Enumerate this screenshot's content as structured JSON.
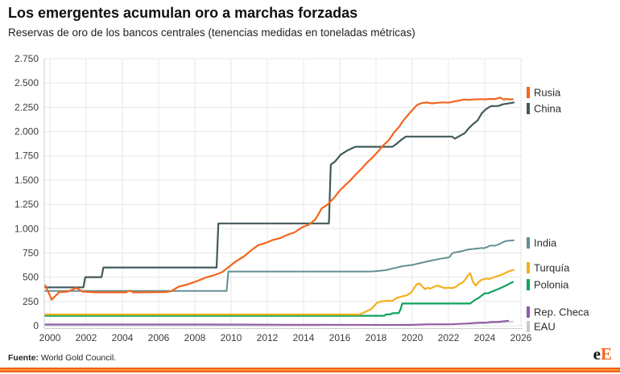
{
  "header": {
    "title": "Los emergentes acumulan oro a marchas forzadas",
    "subtitle": "Reservas de oro de los bancos centrales (tenencias medidas en toneladas métricas)"
  },
  "footer": {
    "source_label": "Fuente:",
    "source_text": "World Gold Council.",
    "logo_e": "e",
    "logo_E": "E"
  },
  "colors": {
    "grid": "#e7e7e7",
    "axis": "#cccccc",
    "tick_text": "#3c3c3c",
    "accent_orange": "#f4641d"
  },
  "chart_data": {
    "type": "line",
    "title": "Los emergentes acumulan oro a marchas forzadas",
    "subtitle": "Reservas de oro de los bancos centrales (tenencias medidas en toneladas métricas)",
    "xlabel": "",
    "ylabel": "",
    "xlim": [
      1999.7,
      2026.5
    ],
    "ylim": [
      0,
      2750
    ],
    "grid": true,
    "legend_position": "right",
    "x_ticks": [
      2000,
      2002,
      2004,
      2006,
      2008,
      2010,
      2012,
      2014,
      2016,
      2018,
      2020,
      2022,
      2024,
      2026
    ],
    "y_ticks": [
      {
        "value": 0,
        "label": "0"
      },
      {
        "value": 250,
        "label": "250"
      },
      {
        "value": 500,
        "label": "500"
      },
      {
        "value": 750,
        "label": "750"
      },
      {
        "value": 1000,
        "label": "1.000"
      },
      {
        "value": 1250,
        "label": "1.250"
      },
      {
        "value": 1500,
        "label": "1.500"
      },
      {
        "value": 1750,
        "label": "1.750"
      },
      {
        "value": 2000,
        "label": "2.000"
      },
      {
        "value": 2250,
        "label": "2.250"
      },
      {
        "value": 2500,
        "label": "2.500"
      },
      {
        "value": 2750,
        "label": "2.750"
      }
    ],
    "series": [
      {
        "name": "Rusia",
        "slug": "rusia",
        "color": "#f4641d",
        "width": 2.2,
        "legend_y": 55,
        "points": [
          [
            1999.75,
            415
          ],
          [
            2000.1,
            268
          ],
          [
            2000.5,
            345
          ],
          [
            2001,
            352
          ],
          [
            2001.45,
            390
          ],
          [
            2001.8,
            352
          ],
          [
            2002.5,
            344
          ],
          [
            2004.2,
            344
          ],
          [
            2004.4,
            363
          ],
          [
            2004.6,
            344
          ],
          [
            2006.4,
            346
          ],
          [
            2006.7,
            357
          ],
          [
            2007.1,
            402
          ],
          [
            2007.6,
            426
          ],
          [
            2008.1,
            458
          ],
          [
            2008.6,
            496
          ],
          [
            2009.1,
            523
          ],
          [
            2009.5,
            552
          ],
          [
            2009.9,
            610
          ],
          [
            2010.3,
            668
          ],
          [
            2010.7,
            712
          ],
          [
            2011.1,
            775
          ],
          [
            2011.5,
            830
          ],
          [
            2011.9,
            852
          ],
          [
            2012.3,
            883
          ],
          [
            2012.7,
            902
          ],
          [
            2013.1,
            936
          ],
          [
            2013.5,
            962
          ],
          [
            2013.9,
            1012
          ],
          [
            2014.3,
            1042
          ],
          [
            2014.65,
            1095
          ],
          [
            2015,
            1208
          ],
          [
            2015.35,
            1252
          ],
          [
            2015.7,
            1322
          ],
          [
            2016,
            1392
          ],
          [
            2016.3,
            1447
          ],
          [
            2016.6,
            1500
          ],
          [
            2016.9,
            1562
          ],
          [
            2017.2,
            1617
          ],
          [
            2017.5,
            1680
          ],
          [
            2017.8,
            1732
          ],
          [
            2018.1,
            1792
          ],
          [
            2018.4,
            1858
          ],
          [
            2018.7,
            1910
          ],
          [
            2019,
            1992
          ],
          [
            2019.25,
            2042
          ],
          [
            2019.5,
            2113
          ],
          [
            2019.75,
            2168
          ],
          [
            2020,
            2220
          ],
          [
            2020.25,
            2271
          ],
          [
            2020.5,
            2293
          ],
          [
            2020.8,
            2299
          ],
          [
            2021.1,
            2290
          ],
          [
            2021.4,
            2296
          ],
          [
            2021.7,
            2300
          ],
          [
            2022,
            2297
          ],
          [
            2022.3,
            2309
          ],
          [
            2022.6,
            2319
          ],
          [
            2022.85,
            2330
          ],
          [
            2023.1,
            2326
          ],
          [
            2023.4,
            2330
          ],
          [
            2023.7,
            2333
          ],
          [
            2024,
            2332
          ],
          [
            2024.3,
            2336
          ],
          [
            2024.6,
            2335
          ],
          [
            2024.85,
            2350
          ],
          [
            2025.05,
            2329
          ],
          [
            2025.2,
            2336
          ],
          [
            2025.4,
            2331
          ],
          [
            2025.55,
            2333
          ]
        ]
      },
      {
        "name": "China",
        "slug": "china",
        "color": "#415a5b",
        "width": 2.2,
        "legend_y": 75,
        "points": [
          [
            1999.75,
            395
          ],
          [
            2001.85,
            395
          ],
          [
            2001.95,
            500
          ],
          [
            2002.85,
            500
          ],
          [
            2002.95,
            600
          ],
          [
            2009.2,
            600
          ],
          [
            2009.3,
            1054
          ],
          [
            2015.4,
            1054
          ],
          [
            2015.5,
            1658
          ],
          [
            2015.75,
            1694
          ],
          [
            2016.05,
            1762
          ],
          [
            2016.45,
            1808
          ],
          [
            2016.85,
            1843
          ],
          [
            2018.9,
            1843
          ],
          [
            2019.1,
            1868
          ],
          [
            2019.4,
            1916
          ],
          [
            2019.65,
            1948
          ],
          [
            2022.2,
            1948
          ],
          [
            2022.35,
            1927
          ],
          [
            2022.55,
            1948
          ],
          [
            2022.9,
            1984
          ],
          [
            2023.1,
            2030
          ],
          [
            2023.35,
            2076
          ],
          [
            2023.6,
            2113
          ],
          [
            2023.85,
            2192
          ],
          [
            2024.1,
            2235
          ],
          [
            2024.35,
            2262
          ],
          [
            2024.75,
            2264
          ],
          [
            2025,
            2280
          ],
          [
            2025.3,
            2289
          ],
          [
            2025.6,
            2299
          ]
        ]
      },
      {
        "name": "India",
        "slug": "india",
        "color": "#628f93",
        "width": 2,
        "legend_y": 242,
        "points": [
          [
            1999.75,
            358
          ],
          [
            2009.75,
            358
          ],
          [
            2009.85,
            558
          ],
          [
            2017.6,
            558
          ],
          [
            2017.95,
            561
          ],
          [
            2018.3,
            567
          ],
          [
            2018.6,
            575
          ],
          [
            2018.9,
            590
          ],
          [
            2019.15,
            599
          ],
          [
            2019.45,
            613
          ],
          [
            2019.75,
            620
          ],
          [
            2020.05,
            628
          ],
          [
            2020.35,
            642
          ],
          [
            2020.65,
            654
          ],
          [
            2020.95,
            667
          ],
          [
            2021.25,
            678
          ],
          [
            2021.55,
            690
          ],
          [
            2021.85,
            699
          ],
          [
            2022.05,
            706
          ],
          [
            2022.2,
            745
          ],
          [
            2022.4,
            757
          ],
          [
            2022.6,
            762
          ],
          [
            2022.8,
            771
          ],
          [
            2023,
            782
          ],
          [
            2023.2,
            788
          ],
          [
            2023.45,
            792
          ],
          [
            2023.7,
            797
          ],
          [
            2023.85,
            801
          ],
          [
            2023.95,
            798
          ],
          [
            2024.1,
            808
          ],
          [
            2024.25,
            822
          ],
          [
            2024.4,
            827
          ],
          [
            2024.55,
            823
          ],
          [
            2024.75,
            836
          ],
          [
            2024.95,
            856
          ],
          [
            2025.15,
            871
          ],
          [
            2025.35,
            876
          ],
          [
            2025.6,
            880
          ]
        ]
      },
      {
        "name": "Turquía",
        "slug": "turquia",
        "color": "#f2b01c",
        "width": 2.2,
        "legend_y": 273,
        "points": [
          [
            1999.75,
            116
          ],
          [
            2017.1,
            116
          ],
          [
            2017.45,
            146
          ],
          [
            2017.75,
            174
          ],
          [
            2018.05,
            236
          ],
          [
            2018.3,
            251
          ],
          [
            2018.6,
            258
          ],
          [
            2018.9,
            255
          ],
          [
            2019.15,
            287
          ],
          [
            2019.45,
            303
          ],
          [
            2019.7,
            313
          ],
          [
            2019.95,
            344
          ],
          [
            2020.1,
            388
          ],
          [
            2020.25,
            428
          ],
          [
            2020.4,
            435
          ],
          [
            2020.55,
            405
          ],
          [
            2020.7,
            377
          ],
          [
            2020.85,
            391
          ],
          [
            2021,
            383
          ],
          [
            2021.2,
            401
          ],
          [
            2021.4,
            414
          ],
          [
            2021.6,
            399
          ],
          [
            2021.8,
            387
          ],
          [
            2022,
            393
          ],
          [
            2022.2,
            388
          ],
          [
            2022.4,
            399
          ],
          [
            2022.6,
            428
          ],
          [
            2022.8,
            448
          ],
          [
            2022.95,
            482
          ],
          [
            2023.1,
            524
          ],
          [
            2023.2,
            540
          ],
          [
            2023.35,
            452
          ],
          [
            2023.5,
            413
          ],
          [
            2023.65,
            446
          ],
          [
            2023.8,
            471
          ],
          [
            2023.95,
            479
          ],
          [
            2024.1,
            487
          ],
          [
            2024.25,
            481
          ],
          [
            2024.4,
            493
          ],
          [
            2024.6,
            505
          ],
          [
            2024.8,
            517
          ],
          [
            2025,
            530
          ],
          [
            2025.2,
            549
          ],
          [
            2025.4,
            565
          ],
          [
            2025.6,
            576
          ]
        ]
      },
      {
        "name": "Polonia",
        "slug": "polonia",
        "color": "#0fa35d",
        "width": 2.2,
        "legend_y": 294,
        "points": [
          [
            1999.75,
            103
          ],
          [
            2018.45,
            103
          ],
          [
            2018.55,
            117
          ],
          [
            2018.8,
            117
          ],
          [
            2018.9,
            129
          ],
          [
            2019.25,
            129
          ],
          [
            2019.35,
            167
          ],
          [
            2019.45,
            229
          ],
          [
            2023.2,
            229
          ],
          [
            2023.45,
            264
          ],
          [
            2023.65,
            285
          ],
          [
            2023.85,
            312
          ],
          [
            2024,
            334
          ],
          [
            2024.2,
            335
          ],
          [
            2024.35,
            349
          ],
          [
            2024.55,
            363
          ],
          [
            2024.75,
            378
          ],
          [
            2024.95,
            394
          ],
          [
            2025.15,
            412
          ],
          [
            2025.35,
            432
          ],
          [
            2025.55,
            450
          ]
        ]
      },
      {
        "name": "Rep. Checa",
        "slug": "rep-checa",
        "color": "#9459a8",
        "width": 2,
        "legend_y": 328,
        "points": [
          [
            1999.75,
            13.5
          ],
          [
            2004,
            13.2
          ],
          [
            2008,
            12.9
          ],
          [
            2011,
            12.3
          ],
          [
            2013,
            11
          ],
          [
            2015,
            10
          ],
          [
            2017,
            9.3
          ],
          [
            2019,
            8.6
          ],
          [
            2019.8,
            8.4
          ],
          [
            2020.1,
            9.5
          ],
          [
            2020.4,
            12
          ],
          [
            2020.8,
            14.5
          ],
          [
            2021.1,
            15.5
          ],
          [
            2021.5,
            15
          ],
          [
            2021.9,
            14
          ],
          [
            2022.2,
            16
          ],
          [
            2022.6,
            19.5
          ],
          [
            2023,
            23.5
          ],
          [
            2023.3,
            27
          ],
          [
            2023.6,
            31
          ],
          [
            2023.85,
            33.5
          ],
          [
            2024.05,
            31.5
          ],
          [
            2024.25,
            38
          ],
          [
            2024.45,
            40.5
          ],
          [
            2024.65,
            39.5
          ],
          [
            2024.9,
            43.5
          ],
          [
            2025.1,
            47.5
          ],
          [
            2025.3,
            51.5
          ]
        ]
      },
      {
        "name": "EAU",
        "slug": "eau",
        "color": "#c6cacd",
        "width": 1.8,
        "legend_y": 346,
        "points": [
          [
            1999.75,
            2
          ],
          [
            2014.8,
            2
          ],
          [
            2015.2,
            5
          ],
          [
            2016.5,
            5.5
          ],
          [
            2017.5,
            7.5
          ],
          [
            2018.5,
            10
          ],
          [
            2019.5,
            12.5
          ],
          [
            2020.5,
            14.5
          ],
          [
            2021.5,
            16
          ],
          [
            2022.5,
            17.5
          ],
          [
            2023,
            19
          ],
          [
            2023.4,
            21
          ],
          [
            2023.8,
            24
          ],
          [
            2024.2,
            27.5
          ],
          [
            2024.6,
            31
          ],
          [
            2025,
            35
          ],
          [
            2025.3,
            39
          ],
          [
            2025.55,
            43
          ]
        ]
      }
    ]
  }
}
